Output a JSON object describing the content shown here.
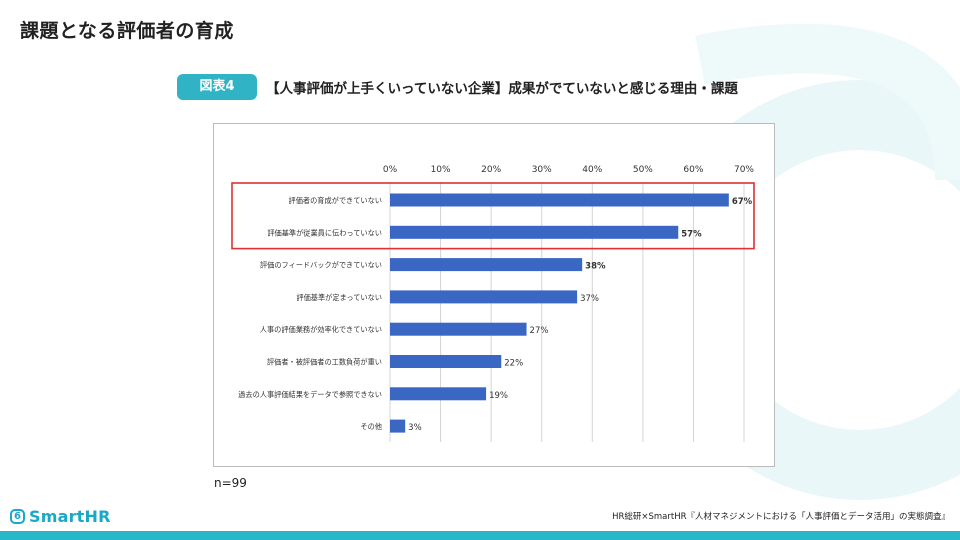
{
  "page": {
    "title": "課題となる評価者の育成"
  },
  "figure": {
    "badge": "図表4",
    "title": "【人事評価が上手くいっていない企業】成果がでていないと感じる理由・課題"
  },
  "sample": {
    "label": "n=99"
  },
  "brand": {
    "logo_mark": "6",
    "logo_text": "SmartHR",
    "accent_color": "#19a9c8"
  },
  "source": {
    "text": "HR総研×SmartHR『人材マネジメントにおける「人事評価とデータ活用」の実態調査』"
  },
  "chart_data": {
    "type": "bar",
    "orientation": "horizontal",
    "title": "【人事評価が上手くいっていない企業】成果がでていないと感じる理由・課題",
    "categories": [
      "評価者の育成ができていない",
      "評価基準が従業員に伝わっていない",
      "評価のフィードバックができていない",
      "評価基準が定まっていない",
      "人事の評価業務が効率化できていない",
      "評価者・被評価者の工数負荷が重い",
      "過去の人事評価結果をデータで参照できない",
      "その他"
    ],
    "values": [
      67,
      57,
      38,
      37,
      27,
      22,
      19,
      3
    ],
    "value_labels": [
      "67%",
      "57%",
      "38%",
      "37%",
      "27%",
      "22%",
      "19%",
      "3%"
    ],
    "x_ticks": [
      "0%",
      "10%",
      "20%",
      "30%",
      "40%",
      "50%",
      "60%",
      "70%"
    ],
    "xlim": [
      0,
      70
    ],
    "grid": true,
    "bar_color": "#3a66c4",
    "highlight": {
      "indices": [
        0,
        1
      ],
      "color": "#e03030"
    }
  }
}
